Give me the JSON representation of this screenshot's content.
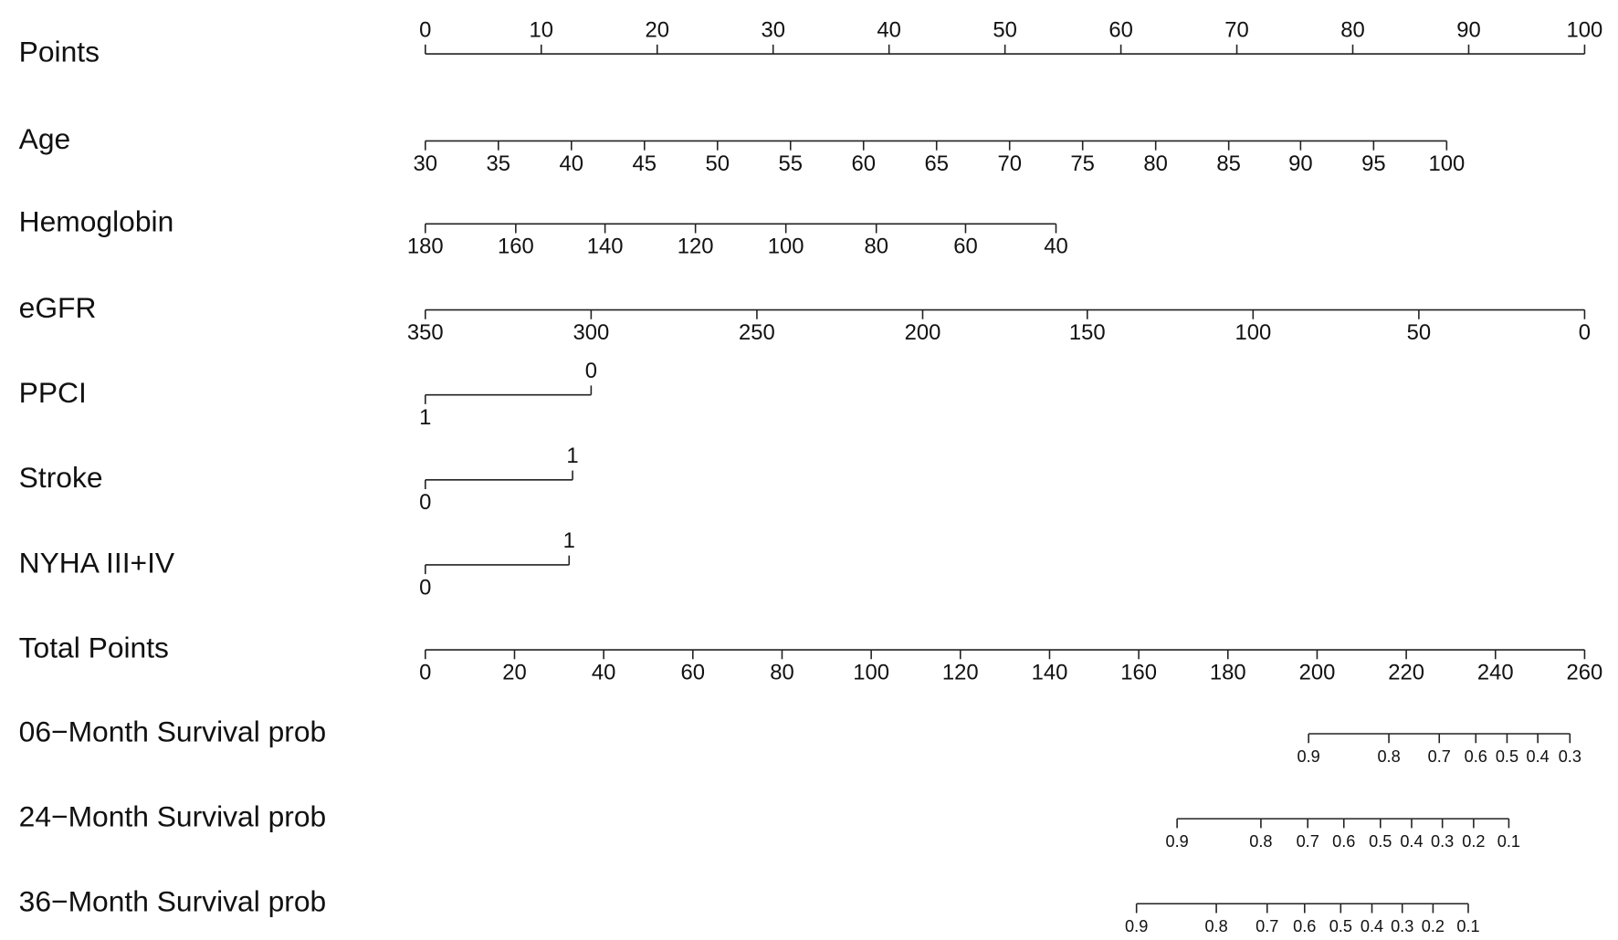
{
  "chart_data": {
    "type": "nomogram",
    "rows": [
      {
        "label": "Points",
        "kind": "points-axis",
        "xlim": [
          0,
          100
        ],
        "ticks": [
          0,
          10,
          20,
          30,
          40,
          50,
          60,
          70,
          80,
          90,
          100
        ]
      },
      {
        "label": "Age",
        "kind": "variable",
        "ticks": [
          30,
          35,
          40,
          45,
          50,
          55,
          60,
          65,
          70,
          75,
          80,
          85,
          90,
          95,
          100
        ],
        "positions": [
          0,
          6.3,
          12.6,
          18.9,
          25.2,
          31.5,
          37.8,
          44.1,
          50.4,
          56.7,
          63.0,
          69.3,
          75.5,
          81.8,
          88.1
        ]
      },
      {
        "label": "Hemoglobin",
        "kind": "variable",
        "ticks": [
          180,
          160,
          140,
          120,
          100,
          80,
          60,
          40
        ],
        "positions": [
          0,
          7.8,
          15.5,
          23.3,
          31.1,
          38.9,
          46.6,
          54.4
        ]
      },
      {
        "label": "eGFR",
        "kind": "variable",
        "ticks": [
          350,
          300,
          250,
          200,
          150,
          100,
          50,
          0
        ],
        "positions": [
          0,
          14.3,
          28.6,
          42.9,
          57.1,
          71.4,
          85.7,
          100
        ]
      },
      {
        "label": "PPCI",
        "kind": "binary",
        "ticks": [
          1,
          0
        ],
        "positions": [
          0,
          14.3
        ]
      },
      {
        "label": "Stroke",
        "kind": "binary",
        "ticks": [
          0,
          1
        ],
        "positions": [
          0,
          12.7
        ]
      },
      {
        "label": "NYHA III+IV",
        "kind": "binary",
        "ticks": [
          0,
          1
        ],
        "positions": [
          0,
          12.4
        ]
      },
      {
        "label": "Total Points",
        "kind": "total-axis",
        "xlim": [
          0,
          260
        ],
        "ticks": [
          0,
          20,
          40,
          60,
          80,
          100,
          120,
          140,
          160,
          180,
          200,
          220,
          240,
          260
        ]
      },
      {
        "label": "06−Month Survival prob",
        "kind": "probability",
        "ticks": [
          0.9,
          0.8,
          0.7,
          0.6,
          0.5,
          0.4,
          0.3
        ],
        "positions": [
          198.1,
          216.1,
          227.4,
          235.6,
          242.6,
          249.5,
          256.7
        ]
      },
      {
        "label": "24−Month Survival prob",
        "kind": "probability",
        "ticks": [
          0.9,
          0.8,
          0.7,
          0.6,
          0.5,
          0.4,
          0.3,
          0.2,
          0.1
        ],
        "positions": [
          168.6,
          187.4,
          197.9,
          206.0,
          214.2,
          221.2,
          228.1,
          235.1,
          243.0
        ]
      },
      {
        "label": "36−Month Survival prob",
        "kind": "probability",
        "ticks": [
          0.9,
          0.8,
          0.7,
          0.6,
          0.5,
          0.4,
          0.3,
          0.2,
          0.1
        ],
        "positions": [
          159.5,
          177.4,
          188.8,
          197.2,
          205.3,
          212.3,
          219.1,
          226.0,
          233.9
        ]
      }
    ]
  }
}
